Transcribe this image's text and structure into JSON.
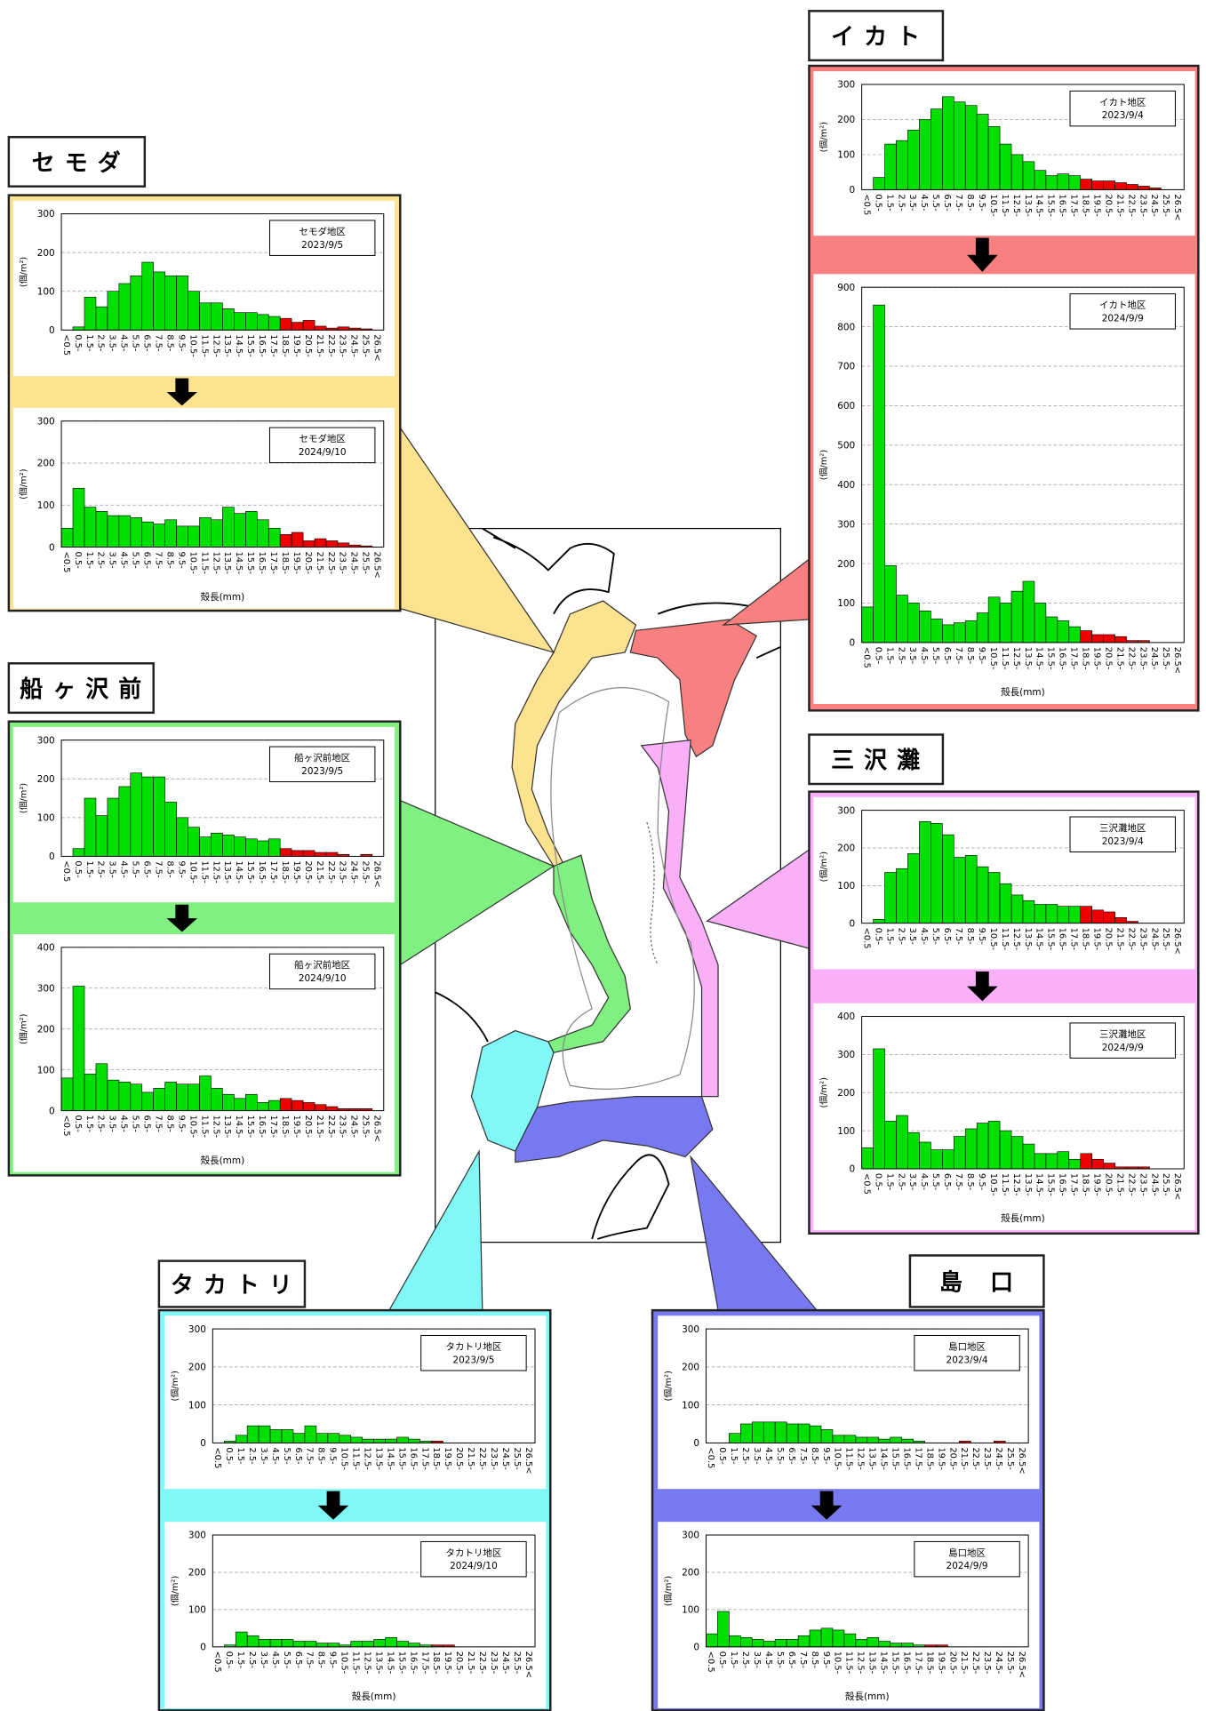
{
  "axis": {
    "categories": [
      "<0.5",
      "0.5-",
      "1.5-",
      "2.5-",
      "3.5-",
      "4.5-",
      "5.5-",
      "6.5-",
      "7.5-",
      "8.5-",
      "9.5-",
      "10.5-",
      "11.5-",
      "12.5-",
      "13.5-",
      "14.5-",
      "15.5-",
      "16.5-",
      "17.5-",
      "18.5-",
      "19.5-",
      "20.5-",
      "21.5-",
      "22.5-",
      "23.5-",
      "24.5-",
      "25.5-",
      "26.5<"
    ],
    "bar_colors": [
      "#00e000",
      "#00e000",
      "#00e000",
      "#00e000",
      "#00e000",
      "#00e000",
      "#00e000",
      "#00e000",
      "#00e000",
      "#00e000",
      "#00e000",
      "#00e000",
      "#00e000",
      "#00e000",
      "#00e000",
      "#00e000",
      "#00e000",
      "#00e000",
      "#00e000",
      "#ee0000",
      "#ee0000",
      "#ee0000",
      "#ee0000",
      "#ee0000",
      "#ee0000",
      "#ee0000",
      "#ee0000",
      "#ee0000"
    ]
  },
  "panels": [
    {
      "name": "セモダ",
      "color": "#fde28f"
    },
    {
      "name": "イカト",
      "color": "#f98080"
    },
    {
      "name": "船ヶ沢前",
      "color": "#80f080"
    },
    {
      "name": "三沢灘",
      "color": "#f9b0f9"
    },
    {
      "name": "タカトリ",
      "color": "#80f8f8"
    },
    {
      "name": "島 口",
      "color": "#7878f0"
    }
  ],
  "chart_data": [
    {
      "type": "bar",
      "title": "セモダ地区",
      "subtitle": "2023/9/5",
      "y_label": "(個/m²)",
      "ylim": [
        0,
        300
      ],
      "yticks": [
        0,
        100,
        200,
        300
      ],
      "values": [
        0,
        8,
        85,
        60,
        100,
        120,
        140,
        175,
        150,
        140,
        140,
        100,
        70,
        70,
        55,
        45,
        45,
        40,
        35,
        30,
        20,
        25,
        10,
        5,
        8,
        5,
        3,
        0
      ]
    },
    {
      "type": "bar",
      "title": "セモダ地区",
      "subtitle": "2024/9/10",
      "y_label": "(個/m²)",
      "x_label": "殻長(mm)",
      "ylim": [
        0,
        300
      ],
      "yticks": [
        0,
        100,
        200,
        300
      ],
      "values": [
        45,
        140,
        95,
        85,
        75,
        75,
        70,
        60,
        55,
        65,
        50,
        50,
        70,
        65,
        95,
        80,
        85,
        65,
        45,
        30,
        35,
        15,
        20,
        15,
        10,
        5,
        3,
        0
      ]
    },
    {
      "type": "bar",
      "title": "イカト地区",
      "subtitle": "2023/9/4",
      "y_label": "(個/m²)",
      "ylim": [
        0,
        300
      ],
      "yticks": [
        0,
        100,
        200,
        300
      ],
      "values": [
        0,
        35,
        130,
        140,
        170,
        200,
        230,
        265,
        250,
        240,
        215,
        180,
        130,
        100,
        80,
        55,
        40,
        45,
        40,
        30,
        25,
        25,
        20,
        15,
        10,
        5,
        0,
        0
      ]
    },
    {
      "type": "bar",
      "title": "イカト地区",
      "subtitle": "2024/9/9",
      "y_label": "(個/m²)",
      "x_label": "殻長(mm)",
      "ylim": [
        0,
        900
      ],
      "yticks": [
        0,
        100,
        200,
        300,
        400,
        500,
        600,
        700,
        800,
        900
      ],
      "values": [
        90,
        855,
        195,
        120,
        100,
        80,
        60,
        45,
        50,
        55,
        75,
        115,
        100,
        130,
        155,
        100,
        65,
        55,
        40,
        30,
        20,
        20,
        15,
        5,
        5,
        0,
        0,
        0
      ]
    },
    {
      "type": "bar",
      "title": "船ヶ沢前地区",
      "subtitle": "2023/9/5",
      "y_label": "(個/m²)",
      "ylim": [
        0,
        300
      ],
      "yticks": [
        0,
        100,
        200,
        300
      ],
      "values": [
        0,
        20,
        150,
        105,
        150,
        180,
        215,
        205,
        205,
        140,
        100,
        75,
        50,
        60,
        55,
        50,
        45,
        40,
        45,
        20,
        15,
        15,
        10,
        10,
        5,
        0,
        5,
        0
      ]
    },
    {
      "type": "bar",
      "title": "船ヶ沢前地区",
      "subtitle": "2024/9/10",
      "y_label": "(個/m²)",
      "x_label": "殻長(mm)",
      "ylim": [
        0,
        400
      ],
      "yticks": [
        0,
        100,
        200,
        300,
        400
      ],
      "values": [
        80,
        305,
        90,
        115,
        75,
        70,
        65,
        45,
        55,
        70,
        65,
        65,
        85,
        55,
        40,
        30,
        40,
        20,
        25,
        30,
        25,
        20,
        15,
        10,
        5,
        5,
        5,
        0
      ]
    },
    {
      "type": "bar",
      "title": "三沢灘地区",
      "subtitle": "2023/9/4",
      "y_label": "(個/m²)",
      "ylim": [
        0,
        300
      ],
      "yticks": [
        0,
        100,
        200,
        300
      ],
      "values": [
        0,
        10,
        135,
        145,
        185,
        270,
        265,
        235,
        175,
        180,
        150,
        135,
        105,
        75,
        60,
        50,
        50,
        45,
        45,
        45,
        35,
        30,
        15,
        5,
        0,
        0,
        0,
        0
      ]
    },
    {
      "type": "bar",
      "title": "三沢灘地区",
      "subtitle": "2024/9/9",
      "y_label": "(個/m²)",
      "x_label": "殻長(mm)",
      "ylim": [
        0,
        400
      ],
      "yticks": [
        0,
        100,
        200,
        300,
        400
      ],
      "values": [
        55,
        315,
        125,
        140,
        95,
        70,
        50,
        50,
        85,
        105,
        120,
        125,
        100,
        85,
        65,
        40,
        40,
        45,
        25,
        40,
        25,
        15,
        5,
        5,
        5,
        0,
        0,
        0
      ]
    },
    {
      "type": "bar",
      "title": "タカトリ地区",
      "subtitle": "2023/9/5",
      "y_label": "(個/m²)",
      "ylim": [
        0,
        300
      ],
      "yticks": [
        0,
        100,
        200,
        300
      ],
      "values": [
        0,
        5,
        20,
        45,
        45,
        35,
        35,
        25,
        45,
        25,
        25,
        20,
        15,
        10,
        10,
        10,
        15,
        10,
        5,
        5,
        0,
        0,
        0,
        0,
        0,
        0,
        0,
        0
      ]
    },
    {
      "type": "bar",
      "title": "タカトリ地区",
      "subtitle": "2024/9/10",
      "y_label": "(個/m²)",
      "x_label": "殻長(mm)",
      "ylim": [
        0,
        300
      ],
      "yticks": [
        0,
        100,
        200,
        300
      ],
      "values": [
        0,
        5,
        40,
        30,
        20,
        20,
        20,
        15,
        15,
        10,
        10,
        5,
        15,
        15,
        20,
        25,
        15,
        10,
        5,
        5,
        5,
        0,
        0,
        0,
        0,
        0,
        0,
        0
      ]
    },
    {
      "type": "bar",
      "title": "島口地区",
      "subtitle": "2023/9/4",
      "y_label": "(個/m²)",
      "ylim": [
        0,
        300
      ],
      "yticks": [
        0,
        100,
        200,
        300
      ],
      "values": [
        0,
        0,
        25,
        50,
        55,
        55,
        55,
        50,
        50,
        45,
        35,
        20,
        20,
        15,
        15,
        10,
        15,
        10,
        5,
        0,
        0,
        0,
        5,
        0,
        0,
        5,
        0,
        0
      ]
    },
    {
      "type": "bar",
      "title": "島口地区",
      "subtitle": "2024/9/9",
      "y_label": "(個/m²)",
      "x_label": "殻長(mm)",
      "ylim": [
        0,
        300
      ],
      "yticks": [
        0,
        100,
        200,
        300
      ],
      "values": [
        35,
        95,
        30,
        25,
        20,
        15,
        20,
        20,
        30,
        45,
        50,
        45,
        35,
        20,
        25,
        15,
        10,
        10,
        5,
        5,
        5,
        0,
        0,
        0,
        0,
        0,
        0,
        0
      ]
    }
  ]
}
